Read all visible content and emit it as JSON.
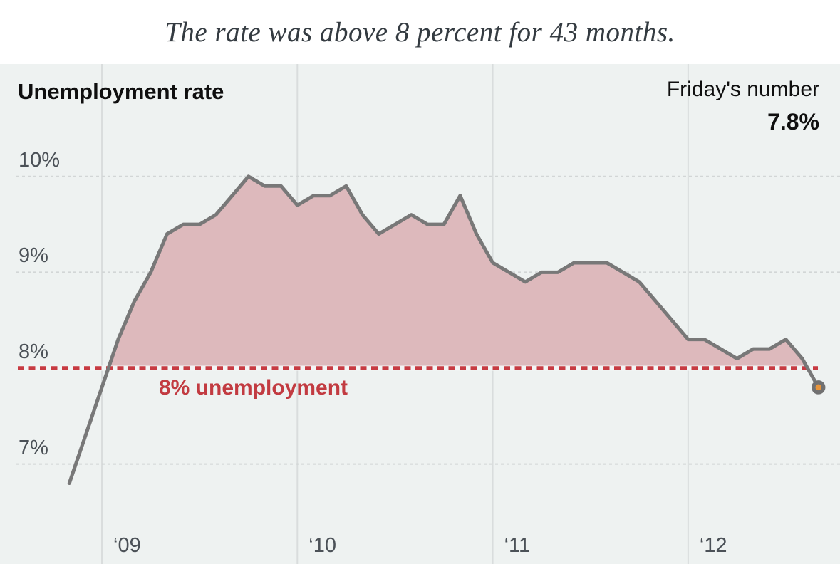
{
  "title": "The rate was above 8 percent for 43 months.",
  "panel": {
    "series_label": "Unemployment rate",
    "callout_label": "Friday's number",
    "callout_value": "7.8%"
  },
  "colors": {
    "panel_bg": "#eef2f1",
    "vgrid": "#d9dddd",
    "hgrid": "#d2d6d6",
    "line": "#787878",
    "area_fill": "#ddb9bc",
    "threshold_red": "#c73b42",
    "threshold_underlay": "#f3f5f5",
    "marker_orange": "#e8953b",
    "marker_ring": "#717171",
    "axis_text": "#4b5157",
    "header_text": "#0f0f0f",
    "title_text": "#343b41"
  },
  "chart_data": {
    "type": "area",
    "title": "Unemployment rate",
    "subtitle": "The rate was above 8 percent for 43 months.",
    "unit": "percent",
    "ylim": [
      6.0,
      10.5
    ],
    "grid": "dotted horizontal at 7,9,10; solid vertical at Jan of each year",
    "x": [
      "2008-11",
      "2008-12",
      "2009-01",
      "2009-02",
      "2009-03",
      "2009-04",
      "2009-05",
      "2009-06",
      "2009-07",
      "2009-08",
      "2009-09",
      "2009-10",
      "2009-11",
      "2009-12",
      "2010-01",
      "2010-02",
      "2010-03",
      "2010-04",
      "2010-05",
      "2010-06",
      "2010-07",
      "2010-08",
      "2010-09",
      "2010-10",
      "2010-11",
      "2010-12",
      "2011-01",
      "2011-02",
      "2011-03",
      "2011-04",
      "2011-05",
      "2011-06",
      "2011-07",
      "2011-08",
      "2011-09",
      "2011-10",
      "2011-11",
      "2011-12",
      "2012-01",
      "2012-02",
      "2012-03",
      "2012-04",
      "2012-05",
      "2012-06",
      "2012-07",
      "2012-08",
      "2012-09"
    ],
    "values": [
      6.8,
      7.3,
      7.8,
      8.3,
      8.7,
      9.0,
      9.4,
      9.5,
      9.5,
      9.6,
      9.8,
      10.0,
      9.9,
      9.9,
      9.7,
      9.8,
      9.8,
      9.9,
      9.6,
      9.4,
      9.5,
      9.6,
      9.5,
      9.5,
      9.8,
      9.4,
      9.1,
      9.0,
      8.9,
      9.0,
      9.0,
      9.1,
      9.1,
      9.1,
      9.0,
      8.9,
      8.7,
      8.5,
      8.3,
      8.3,
      8.2,
      8.1,
      8.2,
      8.2,
      8.3,
      8.1,
      7.8
    ],
    "y_ticks": [
      {
        "label": "10%",
        "value": 10
      },
      {
        "label": "9%",
        "value": 9
      },
      {
        "label": "8%",
        "value": 8
      },
      {
        "label": "7%",
        "value": 7
      }
    ],
    "x_ticks": [
      {
        "label": "‘09",
        "index": 2
      },
      {
        "label": "‘10",
        "index": 14
      },
      {
        "label": "‘11",
        "index": 26
      },
      {
        "label": "‘12",
        "index": 38
      }
    ],
    "threshold": {
      "value": 8,
      "label": "8% unemployment"
    },
    "highlight_last_point": {
      "x": "2012-09",
      "value": 7.8
    }
  }
}
